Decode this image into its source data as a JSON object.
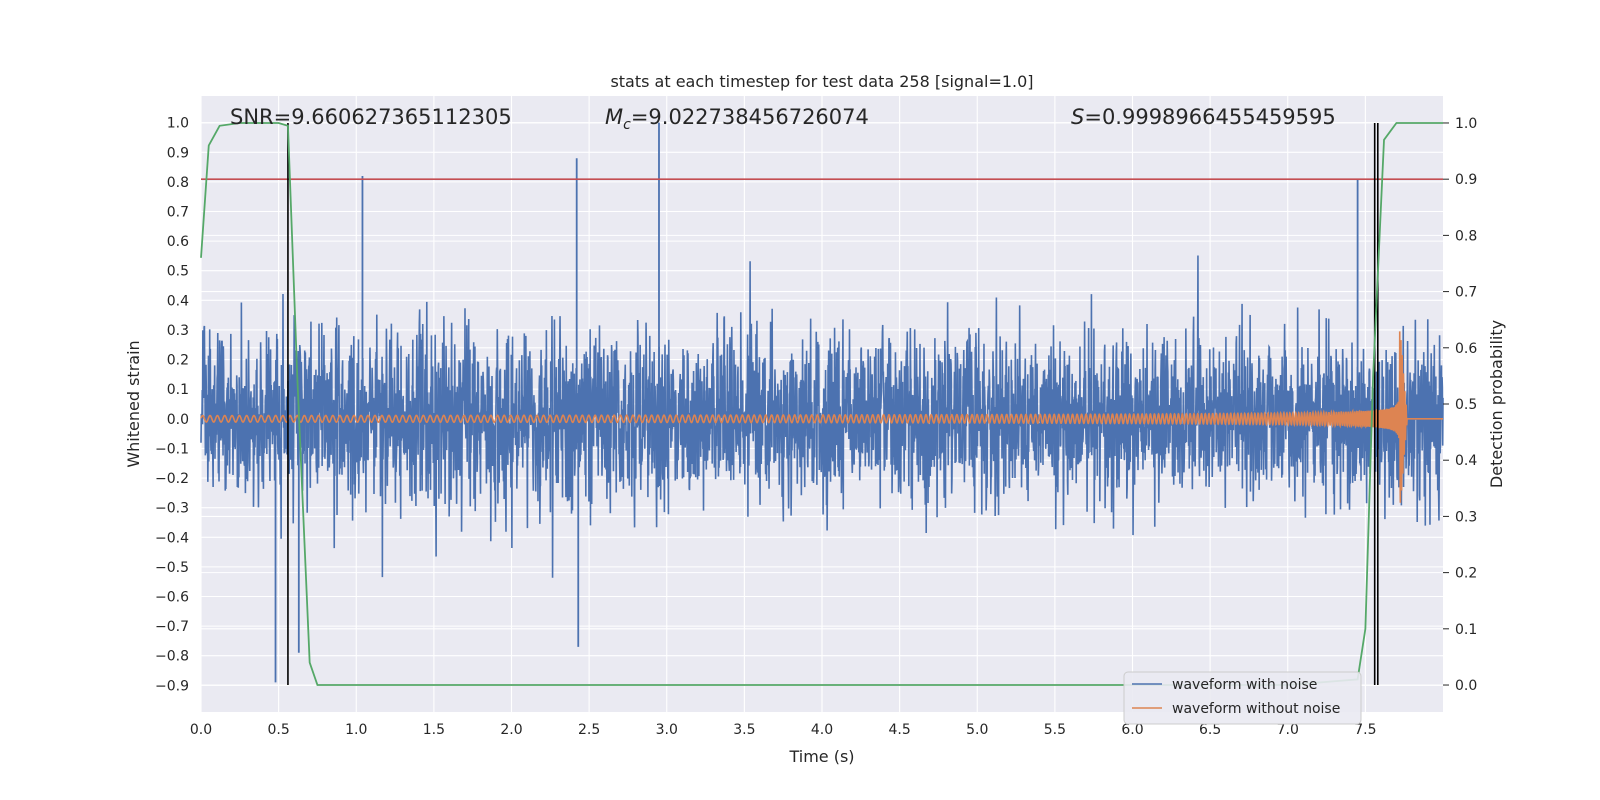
{
  "chart_data": {
    "type": "line",
    "title": "stats at each timestep for test data 258 [signal=1.0]",
    "xlabel": "Time (s)",
    "ylabel": "Whitened strain",
    "y2label": "Detection probability",
    "xlim": [
      0.0,
      8.0
    ],
    "ylim": [
      -0.99,
      1.09
    ],
    "y2lim": [
      -0.048,
      1.048
    ],
    "x_ticks": [
      "0.0",
      "0.5",
      "1.0",
      "1.5",
      "2.0",
      "2.5",
      "3.0",
      "3.5",
      "4.0",
      "4.5",
      "5.0",
      "5.5",
      "6.0",
      "6.5",
      "7.0",
      "7.5"
    ],
    "y_ticks": [
      "−0.9",
      "−0.8",
      "−0.7",
      "−0.6",
      "−0.5",
      "−0.4",
      "−0.3",
      "−0.2",
      "−0.1",
      "0.0",
      "0.1",
      "0.2",
      "0.3",
      "0.4",
      "0.5",
      "0.6",
      "0.7",
      "0.8",
      "0.9",
      "1.0"
    ],
    "y2_ticks": [
      "0.0",
      "0.1",
      "0.2",
      "0.3",
      "0.4",
      "0.5",
      "0.6",
      "0.7",
      "0.8",
      "0.9",
      "1.0"
    ],
    "grid": true,
    "legend_position": "bottom-right",
    "annotations": {
      "snr": "SNR=9.660627365112305",
      "mc_symbol": "M",
      "mc_sub": "c",
      "mc_value": "=9.022738456726074",
      "s_symbol": "S",
      "s_value": "=0.9998966455459595"
    },
    "series": [
      {
        "name": "waveform with noise",
        "color": "#4c72b0",
        "axis": "left",
        "noise_amplitude": 0.45,
        "spike_peaks": [
          [
            0.48,
            -0.89
          ],
          [
            0.63,
            -0.79
          ],
          [
            1.04,
            0.82
          ],
          [
            2.42,
            0.88
          ],
          [
            2.95,
            1.0
          ],
          [
            2.43,
            -0.77
          ],
          [
            7.45,
            0.81
          ]
        ]
      },
      {
        "name": "waveform without noise",
        "color": "#dd8452",
        "axis": "left",
        "chirp_start": 0.0,
        "chirp_merger": 7.72,
        "amp_start": 0.011,
        "amp_peak": 0.33,
        "freq_start": 21,
        "freq_end": 120
      },
      {
        "name": "detection probability",
        "color": "#55a868",
        "axis": "right",
        "x": [
          0.0,
          0.05,
          0.12,
          0.25,
          0.5,
          0.56,
          0.62,
          0.7,
          0.75,
          1.0,
          7.0,
          7.45,
          7.5,
          7.55,
          7.62,
          7.7,
          7.8,
          8.0
        ],
        "y": [
          0.76,
          0.96,
          0.995,
          1.0,
          1.0,
          0.995,
          0.55,
          0.04,
          0.0,
          0.0,
          0.0,
          0.01,
          0.1,
          0.55,
          0.97,
          1.0,
          1.0,
          1.0
        ]
      }
    ],
    "threshold": {
      "value": 0.9,
      "axis": "right",
      "color": "#c44e52"
    },
    "vertical_lines": [
      {
        "x": 0.56,
        "y_from": 0.0,
        "y_to": 1.0,
        "color": "#000000"
      },
      {
        "x": 7.56,
        "y_from": 0.0,
        "y_to": 1.0,
        "color": "#000000"
      },
      {
        "x": 7.58,
        "y_from": 0.0,
        "y_to": 1.0,
        "color": "#000000"
      }
    ]
  }
}
